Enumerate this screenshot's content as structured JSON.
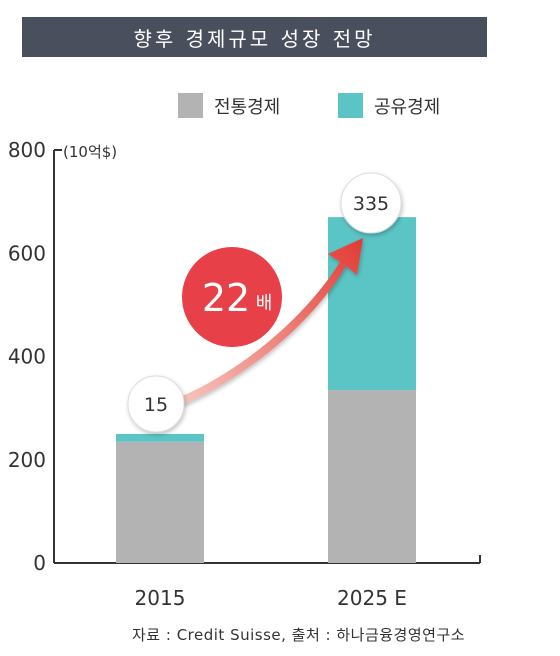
{
  "chart_data": {
    "type": "bar",
    "stacked": true,
    "title": "향후 경제규모 성장 전망",
    "unit_label": "(10억$)",
    "categories": [
      "2015",
      "2025 E"
    ],
    "series": [
      {
        "name": "전통경제",
        "values": [
          235,
          335
        ],
        "color": "#b3b3b3"
      },
      {
        "name": "공유경제",
        "values": [
          15,
          335
        ],
        "color": "#5bc5c6"
      }
    ],
    "ylim": [
      0,
      800
    ],
    "yticks": [
      "0",
      "200",
      "400",
      "600",
      "800"
    ],
    "callouts": [
      "15",
      "335"
    ],
    "growth_badge": {
      "value": "22",
      "unit": "배",
      "color": "#e84048"
    },
    "legend_position": "top-right",
    "grid": false,
    "source": "자료 : Credit Suisse,  출처 : 하나금융경영연구소"
  }
}
